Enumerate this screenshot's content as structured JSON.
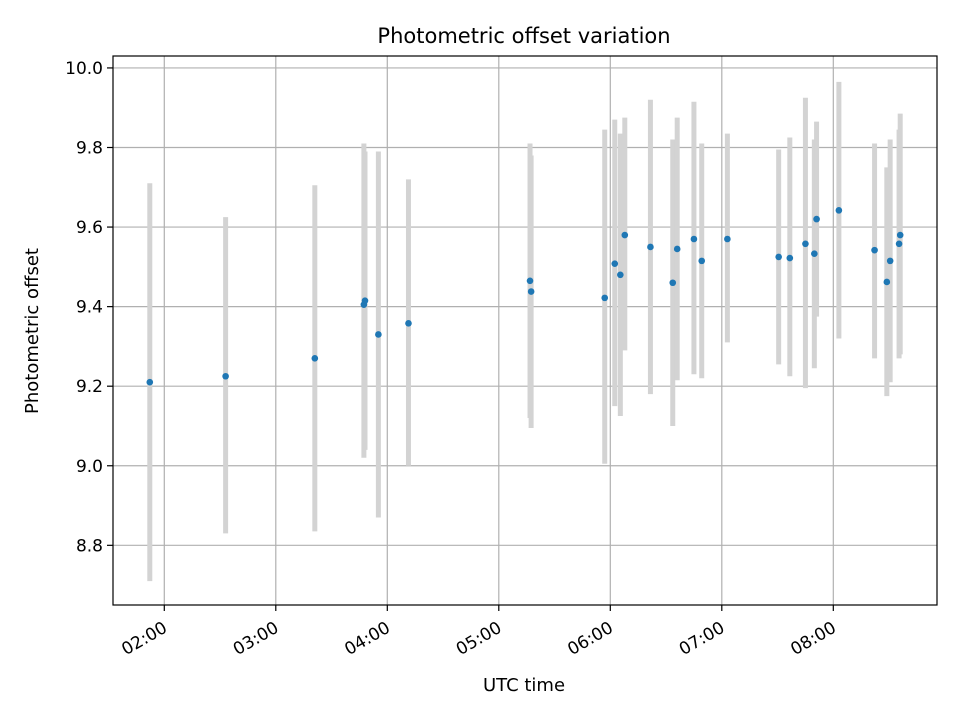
{
  "chart_data": {
    "type": "scatter",
    "title": "Photometric offset variation",
    "xlabel": "UTC time",
    "ylabel": "Photometric offset",
    "grid": true,
    "xlim": [
      1.54,
      8.93
    ],
    "ylim": [
      8.65,
      10.03
    ],
    "x_ticks": [
      {
        "value": 2,
        "label": "02:00"
      },
      {
        "value": 3,
        "label": "03:00"
      },
      {
        "value": 4,
        "label": "04:00"
      },
      {
        "value": 5,
        "label": "05:00"
      },
      {
        "value": 6,
        "label": "06:00"
      },
      {
        "value": 7,
        "label": "07:00"
      },
      {
        "value": 8,
        "label": "08:00"
      }
    ],
    "y_ticks": [
      {
        "value": 8.8,
        "label": "8.8"
      },
      {
        "value": 9.0,
        "label": "9.0"
      },
      {
        "value": 9.2,
        "label": "9.2"
      },
      {
        "value": 9.4,
        "label": "9.4"
      },
      {
        "value": 9.6,
        "label": "9.6"
      },
      {
        "value": 9.8,
        "label": "9.8"
      },
      {
        "value": 10.0,
        "label": "10.0"
      }
    ],
    "series": [
      {
        "name": "offset",
        "marker_color": "#1f77b4",
        "errorbar_color": "#d3d3d3",
        "points": [
          {
            "x": 1.87,
            "y": 9.21,
            "lo": 8.71,
            "hi": 9.71
          },
          {
            "x": 2.55,
            "y": 9.225,
            "lo": 8.83,
            "hi": 9.625
          },
          {
            "x": 3.35,
            "y": 9.27,
            "lo": 8.835,
            "hi": 9.705
          },
          {
            "x": 3.79,
            "y": 9.405,
            "lo": 9.02,
            "hi": 9.81
          },
          {
            "x": 3.8,
            "y": 9.415,
            "lo": 9.04,
            "hi": 9.79
          },
          {
            "x": 3.92,
            "y": 9.33,
            "lo": 8.87,
            "hi": 9.79
          },
          {
            "x": 4.19,
            "y": 9.358,
            "lo": 9.0,
            "hi": 9.72
          },
          {
            "x": 5.28,
            "y": 9.465,
            "lo": 9.12,
            "hi": 9.81
          },
          {
            "x": 5.29,
            "y": 9.438,
            "lo": 9.095,
            "hi": 9.78
          },
          {
            "x": 5.95,
            "y": 9.422,
            "lo": 9.005,
            "hi": 9.845
          },
          {
            "x": 6.04,
            "y": 9.508,
            "lo": 9.15,
            "hi": 9.87
          },
          {
            "x": 6.09,
            "y": 9.48,
            "lo": 9.125,
            "hi": 9.835
          },
          {
            "x": 6.13,
            "y": 9.58,
            "lo": 9.29,
            "hi": 9.875
          },
          {
            "x": 6.36,
            "y": 9.55,
            "lo": 9.18,
            "hi": 9.92
          },
          {
            "x": 6.56,
            "y": 9.46,
            "lo": 9.1,
            "hi": 9.82
          },
          {
            "x": 6.6,
            "y": 9.545,
            "lo": 9.215,
            "hi": 9.875
          },
          {
            "x": 6.75,
            "y": 9.57,
            "lo": 9.23,
            "hi": 9.915
          },
          {
            "x": 6.82,
            "y": 9.515,
            "lo": 9.22,
            "hi": 9.81
          },
          {
            "x": 7.05,
            "y": 9.57,
            "lo": 9.31,
            "hi": 9.835
          },
          {
            "x": 7.51,
            "y": 9.525,
            "lo": 9.255,
            "hi": 9.795
          },
          {
            "x": 7.61,
            "y": 9.522,
            "lo": 9.225,
            "hi": 9.825
          },
          {
            "x": 7.75,
            "y": 9.558,
            "lo": 9.195,
            "hi": 9.925
          },
          {
            "x": 7.83,
            "y": 9.533,
            "lo": 9.245,
            "hi": 9.82
          },
          {
            "x": 7.85,
            "y": 9.62,
            "lo": 9.375,
            "hi": 9.865
          },
          {
            "x": 8.05,
            "y": 9.642,
            "lo": 9.32,
            "hi": 9.965
          },
          {
            "x": 8.37,
            "y": 9.542,
            "lo": 9.27,
            "hi": 9.81
          },
          {
            "x": 8.48,
            "y": 9.462,
            "lo": 9.175,
            "hi": 9.75
          },
          {
            "x": 8.51,
            "y": 9.515,
            "lo": 9.21,
            "hi": 9.82
          },
          {
            "x": 8.59,
            "y": 9.558,
            "lo": 9.27,
            "hi": 9.845
          },
          {
            "x": 8.6,
            "y": 9.58,
            "lo": 9.28,
            "hi": 9.885
          }
        ]
      }
    ]
  }
}
